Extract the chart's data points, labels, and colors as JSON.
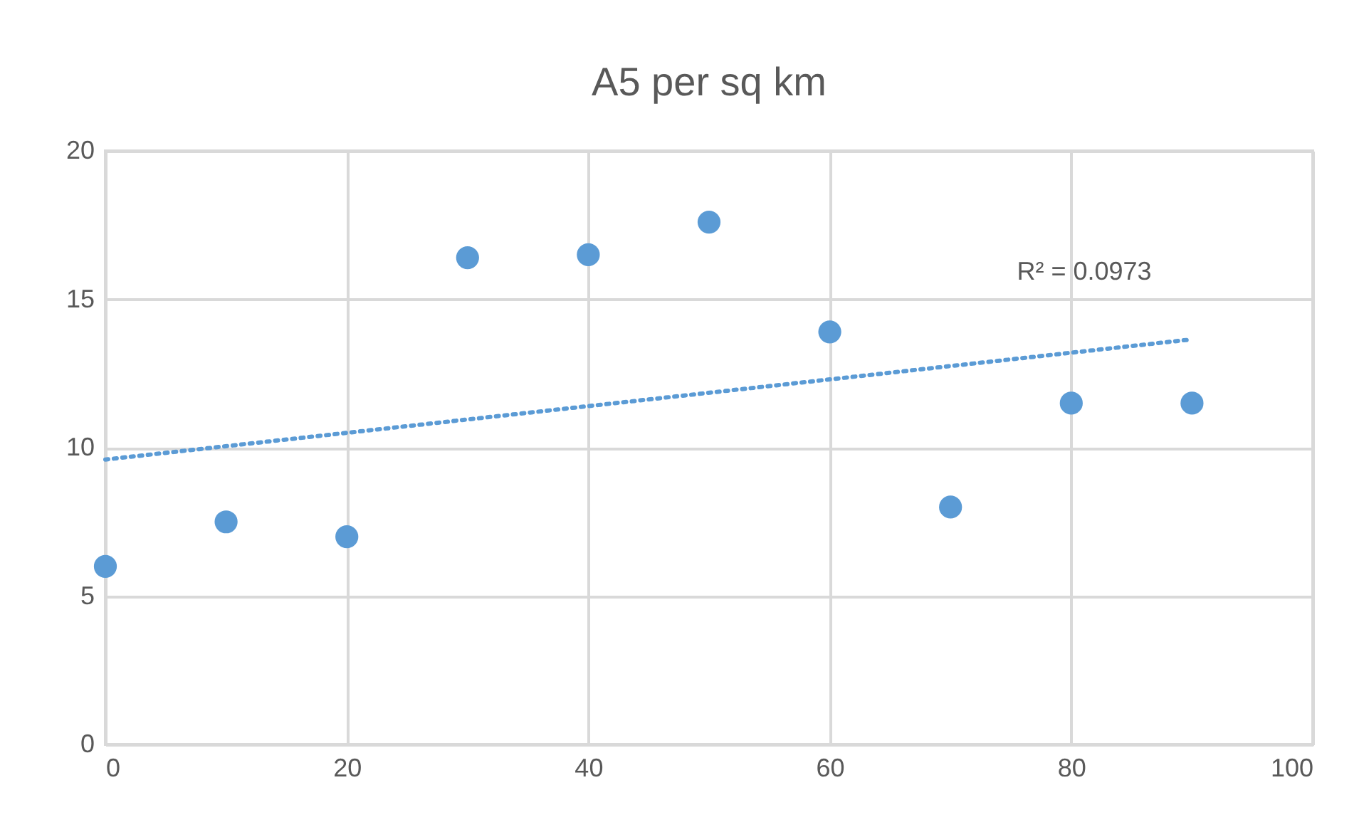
{
  "chart_data": {
    "type": "scatter",
    "title": "A5 per sq km",
    "x": [
      0,
      10,
      20,
      30,
      40,
      50,
      60,
      70,
      80,
      90
    ],
    "series": [
      {
        "color": "#5b9bd5",
        "marker": "circle",
        "values": [
          6.0,
          7.5,
          7.0,
          16.4,
          16.5,
          17.6,
          13.9,
          8.0,
          11.5,
          11.5
        ]
      },
      {
        "type": "line",
        "x": [
          0,
          90
        ],
        "color": "#5b9bd5",
        "line_style": "dotted",
        "marker": "none",
        "values": [
          9.6,
          13.65
        ]
      }
    ],
    "xlim": [
      0,
      100
    ],
    "xticks": [
      0,
      20,
      40,
      60,
      80,
      100
    ],
    "ylim": [
      0,
      20
    ],
    "yticks": [
      0,
      5,
      10,
      15,
      20
    ],
    "grid": true,
    "annotations": [
      "R² = 0.0973"
    ]
  }
}
